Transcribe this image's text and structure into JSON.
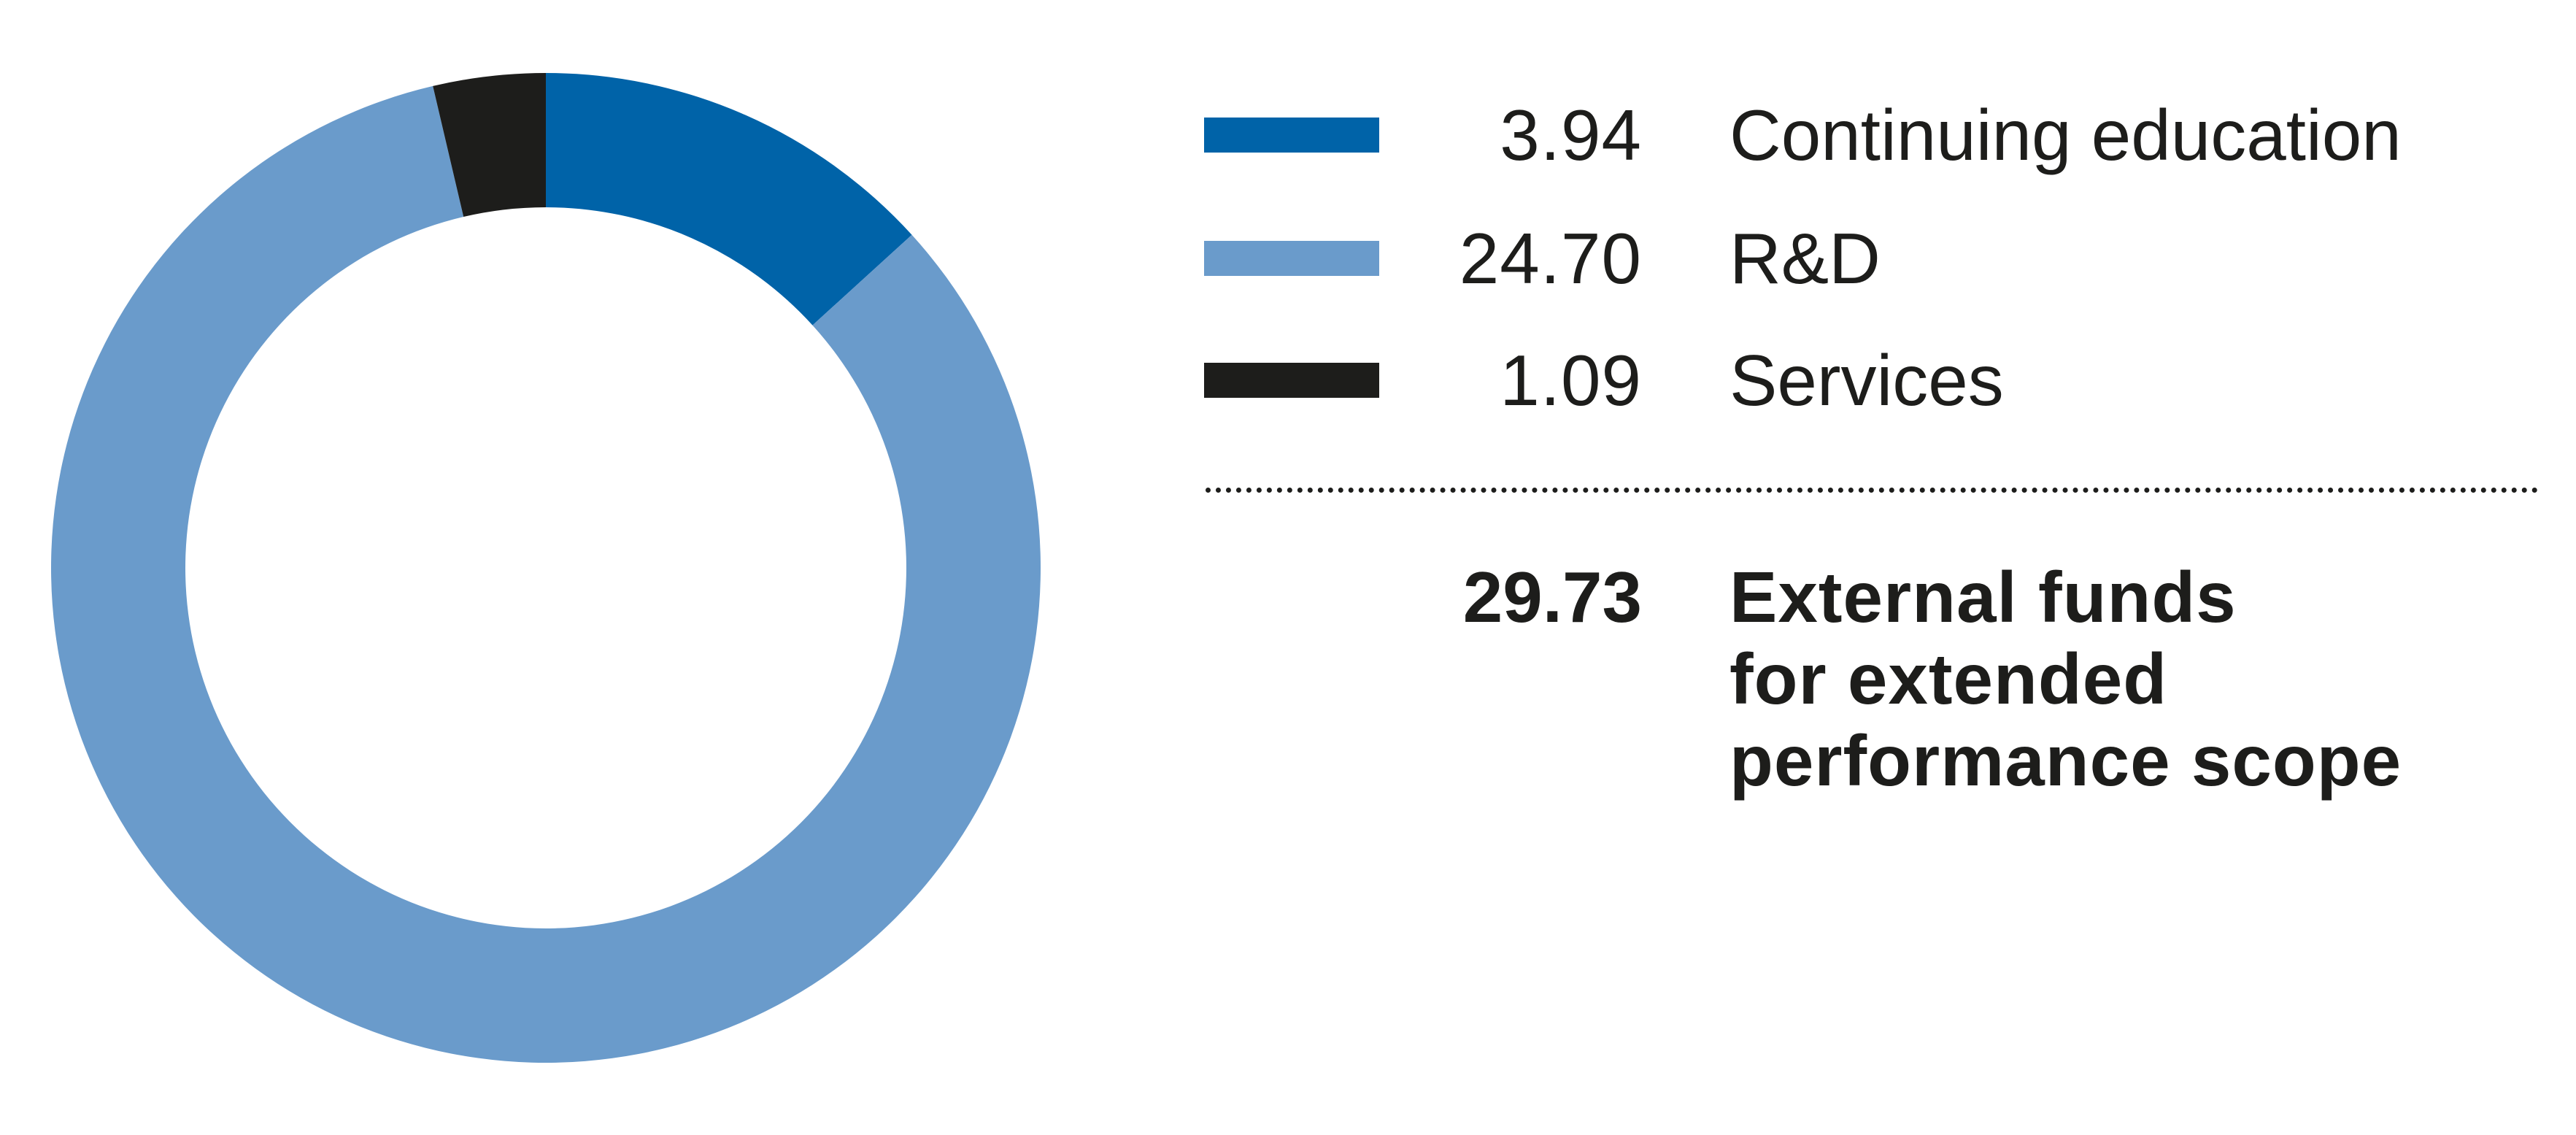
{
  "chart_data": {
    "type": "pie",
    "donut": true,
    "direction": "clockwise",
    "start": "top",
    "slices": [
      {
        "label": "Continuing education",
        "value": 3.94,
        "value_text": "3.94",
        "color": "#0063a8"
      },
      {
        "label": "R&D",
        "value": 24.7,
        "value_text": "24.70",
        "color": "#6a9bcb"
      },
      {
        "label": "Services",
        "value": 1.09,
        "value_text": "1.09",
        "color": "#1d1d1b"
      }
    ],
    "total": {
      "value": "29.73",
      "label_lines": [
        "External funds",
        "for extended",
        "performance scope"
      ]
    },
    "legend_placement": "right"
  }
}
